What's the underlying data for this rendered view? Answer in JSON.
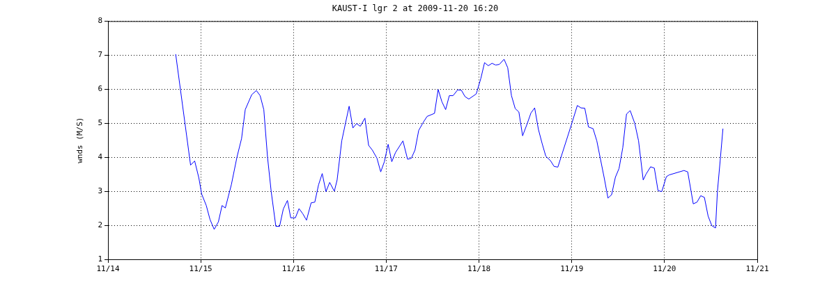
{
  "chart_data": {
    "type": "line",
    "title": "KAUST-I lgr 2 at 2009-11-20 16:20",
    "ylabel": "wnds (M/S)",
    "xlim": [
      "2009-11-14",
      "2009-11-21"
    ],
    "xticks": [
      {
        "value": "2009-11-14",
        "label": "11/14"
      },
      {
        "value": "2009-11-15",
        "label": "11/15"
      },
      {
        "value": "2009-11-16",
        "label": "11/16"
      },
      {
        "value": "2009-11-17",
        "label": "11/17"
      },
      {
        "value": "2009-11-18",
        "label": "11/18"
      },
      {
        "value": "2009-11-19",
        "label": "11/19"
      },
      {
        "value": "2009-11-20",
        "label": "11/20"
      },
      {
        "value": "2009-11-21",
        "label": "11/21"
      }
    ],
    "ylim": [
      1,
      8
    ],
    "yticks": [
      1,
      2,
      3,
      4,
      5,
      6,
      7,
      8
    ],
    "grid": true,
    "legend": false,
    "marker": "none",
    "line_style": "solid",
    "series": [
      {
        "color": "#0000ff",
        "x": [
          "2009-11-14T17:31",
          "2009-11-14T21:22",
          "2009-11-14T22:26",
          "2009-11-14T23:31",
          "2009-11-15T00:14",
          "2009-11-15T01:26",
          "2009-11-15T02:24",
          "2009-11-15T03:29",
          "2009-11-15T04:34",
          "2009-11-15T05:31",
          "2009-11-15T06:22",
          "2009-11-15T07:55",
          "2009-11-15T09:22",
          "2009-11-15T10:34",
          "2009-11-15T11:31",
          "2009-11-15T13:12",
          "2009-11-15T14:24",
          "2009-11-15T15:22",
          "2009-11-15T16:19",
          "2009-11-15T17:17",
          "2009-11-15T18:14",
          "2009-11-15T19:26",
          "2009-11-15T20:24",
          "2009-11-15T21:22",
          "2009-11-15T22:26",
          "2009-11-15T23:17",
          "2009-11-16T00:29",
          "2009-11-16T01:26",
          "2009-11-16T02:24",
          "2009-11-16T03:22",
          "2009-11-16T04:34",
          "2009-11-16T05:31",
          "2009-11-16T06:29",
          "2009-11-16T07:26",
          "2009-11-16T08:24",
          "2009-11-16T09:22",
          "2009-11-16T10:34",
          "2009-11-16T11:17",
          "2009-11-16T12:29",
          "2009-11-16T13:26",
          "2009-11-16T14:24",
          "2009-11-16T15:22",
          "2009-11-16T16:19",
          "2009-11-16T17:17",
          "2009-11-16T18:29",
          "2009-11-16T19:26",
          "2009-11-16T20:24",
          "2009-11-16T21:36",
          "2009-11-16T22:34",
          "2009-11-16T23:31",
          "2009-11-17T00:29",
          "2009-11-17T01:26",
          "2009-11-17T02:24",
          "2009-11-17T04:19",
          "2009-11-17T05:31",
          "2009-11-17T06:29",
          "2009-11-17T07:26",
          "2009-11-17T08:24",
          "2009-11-17T09:36",
          "2009-11-17T10:34",
          "2009-11-17T12:29",
          "2009-11-17T13:26",
          "2009-11-17T14:24",
          "2009-11-17T15:22",
          "2009-11-17T16:19",
          "2009-11-17T17:17",
          "2009-11-17T18:29",
          "2009-11-17T19:26",
          "2009-11-17T20:24",
          "2009-11-17T21:22",
          "2009-11-17T23:17",
          "2009-11-18T00:29",
          "2009-11-18T01:26",
          "2009-11-18T02:24",
          "2009-11-18T03:22",
          "2009-11-18T04:19",
          "2009-11-18T05:17",
          "2009-11-18T06:29",
          "2009-11-18T07:26",
          "2009-11-18T08:24",
          "2009-11-18T09:22",
          "2009-11-18T10:19",
          "2009-11-18T11:17",
          "2009-11-18T12:29",
          "2009-11-18T13:26",
          "2009-11-18T14:24",
          "2009-11-18T15:22",
          "2009-11-18T16:19",
          "2009-11-18T17:17",
          "2009-11-18T18:29",
          "2009-11-18T19:26",
          "2009-11-18T20:24",
          "2009-11-19T00:00",
          "2009-11-19T01:26",
          "2009-11-19T02:24",
          "2009-11-19T03:22",
          "2009-11-19T04:19",
          "2009-11-19T05:31",
          "2009-11-19T06:29",
          "2009-11-19T08:24",
          "2009-11-19T09:22",
          "2009-11-19T10:19",
          "2009-11-19T11:17",
          "2009-11-19T12:14",
          "2009-11-19T13:12",
          "2009-11-19T14:10",
          "2009-11-19T15:07",
          "2009-11-19T16:19",
          "2009-11-19T17:17",
          "2009-11-19T18:29",
          "2009-11-19T19:12",
          "2009-11-19T20:24",
          "2009-11-19T21:22",
          "2009-11-19T22:19",
          "2009-11-19T23:17",
          "2009-11-20T00:29",
          "2009-11-20T01:12",
          "2009-11-20T05:02",
          "2009-11-20T06:00",
          "2009-11-20T07:26",
          "2009-11-20T08:24",
          "2009-11-20T09:22",
          "2009-11-20T10:19",
          "2009-11-20T11:17",
          "2009-11-20T12:14",
          "2009-11-20T13:12",
          "2009-11-20T13:41",
          "2009-11-20T14:24",
          "2009-11-20T15:07"
        ],
        "values": [
          7.03,
          3.77,
          3.89,
          3.39,
          2.92,
          2.58,
          2.17,
          1.88,
          2.1,
          2.58,
          2.51,
          3.19,
          4.0,
          4.55,
          5.4,
          5.84,
          5.96,
          5.81,
          5.4,
          4.0,
          2.99,
          1.97,
          1.97,
          2.48,
          2.73,
          2.22,
          2.22,
          2.49,
          2.34,
          2.15,
          2.66,
          2.68,
          3.19,
          3.52,
          2.99,
          3.26,
          3.0,
          3.33,
          4.48,
          4.99,
          5.5,
          4.86,
          4.99,
          4.91,
          5.15,
          4.35,
          4.21,
          3.97,
          3.57,
          3.87,
          4.38,
          3.87,
          4.14,
          4.48,
          3.94,
          3.97,
          4.21,
          4.79,
          5.03,
          5.2,
          5.29,
          5.99,
          5.63,
          5.4,
          5.81,
          5.81,
          5.98,
          5.97,
          5.78,
          5.71,
          5.86,
          6.32,
          6.78,
          6.69,
          6.76,
          6.71,
          6.73,
          6.88,
          6.63,
          5.81,
          5.43,
          5.33,
          4.63,
          4.99,
          5.3,
          5.45,
          4.82,
          4.41,
          4.03,
          3.9,
          3.73,
          3.71,
          4.99,
          5.52,
          5.45,
          5.44,
          4.89,
          4.84,
          4.48,
          3.39,
          2.8,
          2.9,
          3.41,
          3.67,
          4.28,
          5.27,
          5.37,
          4.99,
          4.48,
          3.33,
          3.5,
          3.72,
          3.68,
          3.02,
          2.99,
          3.43,
          3.48,
          3.61,
          3.57,
          2.63,
          2.68,
          2.87,
          2.82,
          2.27,
          1.99,
          1.92,
          2.99,
          3.9,
          4.84
        ]
      }
    ]
  }
}
